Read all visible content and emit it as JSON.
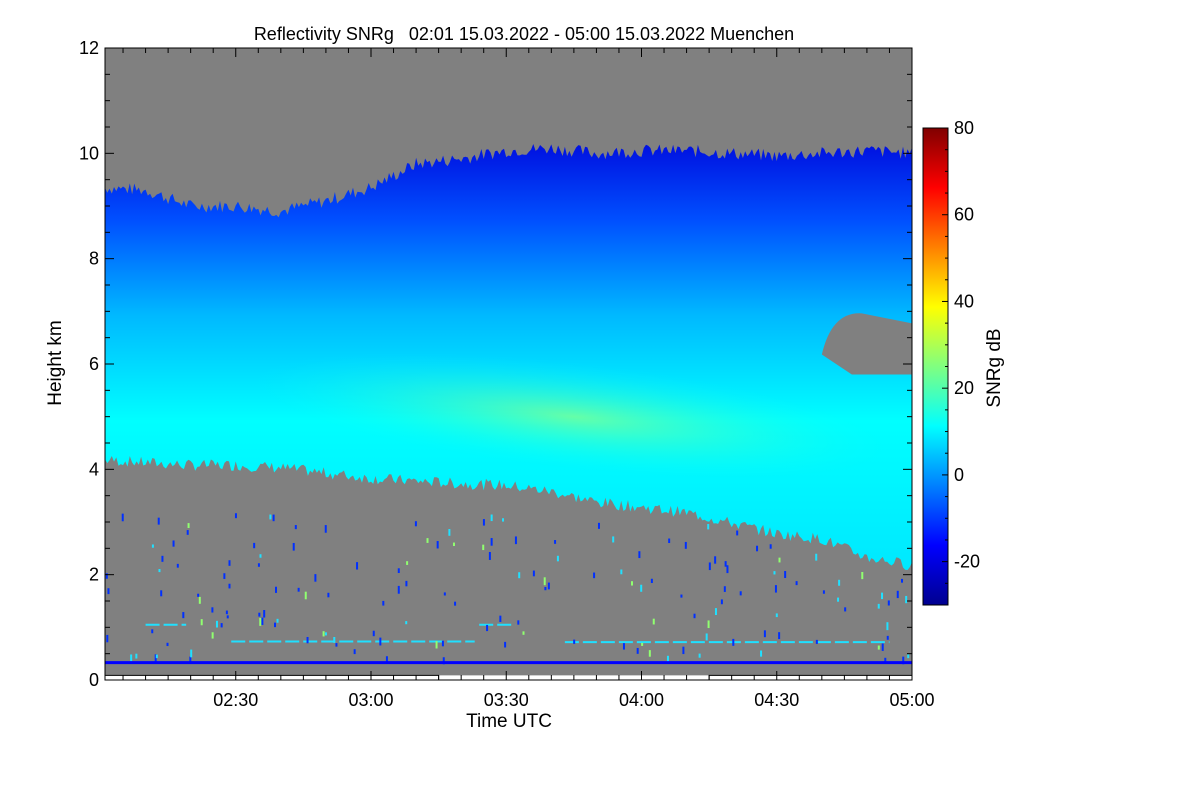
{
  "chart_data": {
    "type": "heatmap",
    "title": "Reflectivity SNRg   02:01 15.03.2022 - 05:00 15.03.2022 Muenchen",
    "xlabel": "Time UTC",
    "ylabel": "Height km",
    "colorbar_label": "SNRg dB",
    "x_range": [
      "02:01",
      "05:00"
    ],
    "xlim_minutes_utc": [
      121,
      300
    ],
    "x_ticks": [
      {
        "minute": 150,
        "label": "02:30"
      },
      {
        "minute": 180,
        "label": "03:00"
      },
      {
        "minute": 210,
        "label": "03:30"
      },
      {
        "minute": 240,
        "label": "04:00"
      },
      {
        "minute": 270,
        "label": "04:30"
      },
      {
        "minute": 300,
        "label": "05:00"
      }
    ],
    "ylim": [
      0,
      12
    ],
    "y_ticks": [
      0,
      2,
      4,
      6,
      8,
      10,
      12
    ],
    "colorbar_range": [
      -30,
      80
    ],
    "colorbar_ticks": [
      -20,
      0,
      20,
      40,
      60,
      80
    ],
    "colormap": [
      "#00008f",
      "#0000ff",
      "#0080ff",
      "#00ffff",
      "#80ff80",
      "#ffff00",
      "#ff8000",
      "#ff0000",
      "#800000"
    ],
    "background_color": "#808080",
    "cloud_top_km": [
      [
        121,
        9.35
      ],
      [
        130,
        9.3
      ],
      [
        140,
        9.0
      ],
      [
        150,
        9.0
      ],
      [
        160,
        8.9
      ],
      [
        170,
        9.1
      ],
      [
        180,
        9.35
      ],
      [
        190,
        9.8
      ],
      [
        200,
        9.9
      ],
      [
        210,
        10.05
      ],
      [
        220,
        10.1
      ],
      [
        230,
        10.0
      ],
      [
        240,
        10.05
      ],
      [
        250,
        10.05
      ],
      [
        260,
        10.0
      ],
      [
        270,
        9.95
      ],
      [
        280,
        10.0
      ],
      [
        290,
        10.05
      ],
      [
        300,
        10.0
      ]
    ],
    "cloud_base_km": [
      [
        121,
        4.2
      ],
      [
        130,
        4.15
      ],
      [
        140,
        4.1
      ],
      [
        150,
        4.1
      ],
      [
        160,
        4.05
      ],
      [
        170,
        3.95
      ],
      [
        180,
        3.85
      ],
      [
        190,
        3.8
      ],
      [
        200,
        3.75
      ],
      [
        210,
        3.72
      ],
      [
        220,
        3.6
      ],
      [
        230,
        3.4
      ],
      [
        240,
        3.3
      ],
      [
        250,
        3.2
      ],
      [
        260,
        3.0
      ],
      [
        270,
        2.8
      ],
      [
        280,
        2.7
      ],
      [
        290,
        2.35
      ],
      [
        300,
        2.2
      ]
    ],
    "cloud_core_km": [
      [
        121,
        5.2
      ],
      [
        150,
        5.3
      ],
      [
        180,
        5.15
      ],
      [
        210,
        4.8
      ],
      [
        240,
        4.8
      ],
      [
        270,
        4.6
      ],
      [
        300,
        3.6
      ]
    ],
    "clear_gap": {
      "minutes": [
        280,
        300
      ],
      "heights_km": [
        5.8,
        7.0
      ]
    },
    "speckle_lines": [
      {
        "minutes": [
          130,
          139
        ],
        "height_km": 1.05
      },
      {
        "minutes": [
          149,
          203
        ],
        "height_km": 0.73
      },
      {
        "minutes": [
          204,
          212
        ],
        "height_km": 1.05
      },
      {
        "minutes": [
          223,
          295
        ],
        "height_km": 0.72
      }
    ],
    "surface_line": {
      "height_km": 0.33,
      "color": "#0000ff"
    }
  }
}
